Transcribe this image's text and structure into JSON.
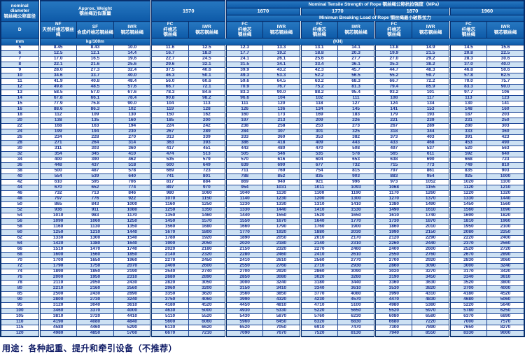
{
  "colors": {
    "header_bg": "#1263b2",
    "border_navy": "#08306e",
    "row_alt_blue": "#cde1f3",
    "data_text": "#1b3190"
  },
  "header": {
    "diameter": {
      "label": "nominal\ndiameter\n钢丝绳公称直径",
      "symbol": "D",
      "unit": "mm"
    },
    "weight": {
      "label": "Approx. Weight\n钢丝绳近似重量",
      "unit": "kg/100m",
      "columns": {
        "nf": "NF\n天然纤维芯钢丝绳",
        "sf": "SF\n合成纤维芯钢丝绳",
        "iwr": "IWR\n钢芯钢丝绳"
      }
    },
    "tensile_label": "Nominal Tensile Strength of Rope 钢丝绳公称抗拉强度（MPa）",
    "breaking_label": "Minimun Breaking Load of Rope 钢丝绳最小破断拉力",
    "breaking_unit": "(KN)",
    "grades": [
      "1570",
      "1670",
      "1770",
      "1870",
      "1960"
    ],
    "fc_label": "FC\n纤维芯\n钢丝绳",
    "iwr_label": "IWR\n钢芯钢丝绳"
  },
  "footer": {
    "text": "用途：各种起重、提升和牵引设备（不推荐）"
  },
  "chart_data": {
    "type": "table",
    "columns": [
      "D (mm)",
      "NF 天然纤维芯钢丝绳 (kg/100m)",
      "SF 合成纤维芯钢丝绳 (kg/100m)",
      "IWR 钢芯钢丝绳 (kg/100m)",
      "1570 FC 纤维芯钢丝绳 (KN)",
      "1570 IWR 钢芯钢丝绳 (KN)",
      "1670 FC 纤维芯钢丝绳 (KN)",
      "1670 IWR 钢芯钢丝绳 (KN)",
      "1770 FC 纤维芯钢丝绳 (KN)",
      "1770 IWR 钢芯钢丝绳 (KN)",
      "1870 FC 纤维芯钢丝绳 (KN)",
      "1870 IWR 钢芯钢丝绳 (KN)",
      "1960 FC 纤维芯钢丝绳 (KN)",
      "1960 IWR 钢芯钢丝绳 (KN)"
    ],
    "rows": [
      [
        "5",
        "8.45",
        "8.43",
        "10.0",
        "11.6",
        "12.5",
        "12.3",
        "13.3",
        "13.1",
        "14.1",
        "13.8",
        "14.9",
        "14.5",
        "15.6"
      ],
      [
        "6",
        "12.5",
        "12.1",
        "14.4",
        "16.7",
        "18.0",
        "17.7",
        "19.2",
        "18.8",
        "20.3",
        "19.9",
        "21.5",
        "20.8",
        "22.5"
      ],
      [
        "7",
        "17.0",
        "16.5",
        "19.6",
        "22.7",
        "24.5",
        "24.1",
        "26.1",
        "25.6",
        "27.7",
        "27.0",
        "29.2",
        "28.3",
        "30.6"
      ],
      [
        "8",
        "22.1",
        "21.6",
        "25.6",
        "29.6",
        "32.1",
        "31.5",
        "34.1",
        "33.4",
        "36.1",
        "35.3",
        "38.2",
        "37.0",
        "40.0"
      ],
      [
        "9",
        "28.0",
        "27.3",
        "32.4",
        "37.5",
        "40.6",
        "39.9",
        "43.2",
        "42.3",
        "45.7",
        "44.7",
        "48.3",
        "46.8",
        "50.6"
      ],
      [
        "10",
        "34.6",
        "33.7",
        "40.0",
        "46.3",
        "50.1",
        "49.3",
        "53.3",
        "52.2",
        "56.5",
        "55.2",
        "59.7",
        "57.8",
        "62.5"
      ],
      [
        "11",
        "41.9",
        "40.8",
        "48.4",
        "56.0",
        "60.6",
        "59.6",
        "64.5",
        "63.2",
        "68.3",
        "66.7",
        "72.2",
        "70.0",
        "75.7"
      ],
      [
        "12",
        "49.8",
        "48.5",
        "57.6",
        "66.7",
        "72.1",
        "70.9",
        "76.7",
        "75.2",
        "81.3",
        "79.4",
        "85.9",
        "83.3",
        "90.0"
      ],
      [
        "13",
        "58.5",
        "57.0",
        "67.6",
        "78.3",
        "84.6",
        "83.3",
        "90.0",
        "88.2",
        "95.4",
        "93.2",
        "101",
        "97.7",
        "106"
      ],
      [
        "14",
        "67.8",
        "66.1",
        "78.4",
        "90.8",
        "98.2",
        "96.6",
        "104",
        "102",
        "111",
        "108",
        "117",
        "113",
        "123"
      ],
      [
        "15",
        "77.9",
        "75.8",
        "90.0",
        "104",
        "113",
        "111",
        "120",
        "118",
        "127",
        "124",
        "134",
        "130",
        "141"
      ],
      [
        "16",
        "88.6",
        "86.3",
        "102",
        "119",
        "128",
        "126",
        "136",
        "134",
        "145",
        "141",
        "153",
        "148",
        "160"
      ],
      [
        "18",
        "112",
        "109",
        "130",
        "150",
        "162",
        "160",
        "173",
        "169",
        "183",
        "179",
        "193",
        "187",
        "203"
      ],
      [
        "20",
        "138",
        "135",
        "160",
        "185",
        "200",
        "197",
        "213",
        "209",
        "226",
        "221",
        "239",
        "231",
        "250"
      ],
      [
        "22",
        "168",
        "163",
        "194",
        "224",
        "242",
        "238",
        "258",
        "253",
        "273",
        "267",
        "289",
        "280",
        "303"
      ],
      [
        "24",
        "199",
        "194",
        "230",
        "267",
        "289",
        "284",
        "307",
        "301",
        "325",
        "318",
        "344",
        "333",
        "360"
      ],
      [
        "26",
        "234",
        "228",
        "270",
        "313",
        "339",
        "333",
        "360",
        "353",
        "382",
        "373",
        "403",
        "391",
        "423"
      ],
      [
        "28",
        "271",
        "264",
        "314",
        "363",
        "393",
        "386",
        "418",
        "409",
        "443",
        "433",
        "468",
        "453",
        "490"
      ],
      [
        "30",
        "311",
        "303",
        "360",
        "417",
        "451",
        "443",
        "480",
        "470",
        "508",
        "497",
        "537",
        "520",
        "563"
      ],
      [
        "32",
        "354",
        "345",
        "410",
        "474",
        "513",
        "505",
        "546",
        "535",
        "578",
        "565",
        "611",
        "592",
        "640"
      ],
      [
        "34",
        "400",
        "390",
        "462",
        "535",
        "579",
        "570",
        "616",
        "604",
        "653",
        "638",
        "690",
        "668",
        "723"
      ],
      [
        "36",
        "448",
        "437",
        "518",
        "600",
        "649",
        "639",
        "690",
        "677",
        "732",
        "715",
        "773",
        "749",
        "810"
      ],
      [
        "38",
        "500",
        "487",
        "578",
        "669",
        "723",
        "711",
        "769",
        "754",
        "815",
        "797",
        "861",
        "835",
        "903"
      ],
      [
        "40",
        "554",
        "539",
        "640",
        "741",
        "801",
        "788",
        "852",
        "835",
        "903",
        "883",
        "954",
        "925",
        "1000"
      ],
      [
        "42",
        "610",
        "595",
        "706",
        "817",
        "884",
        "869",
        "940",
        "921",
        "996",
        "973",
        "1052",
        "1020",
        "1100"
      ],
      [
        "44",
        "670",
        "652",
        "774",
        "897",
        "970",
        "954",
        "1031",
        "1011",
        "1093",
        "1068",
        "1155",
        "1120",
        "1210"
      ],
      [
        "46",
        "732",
        "713",
        "846",
        "980",
        "1060",
        "1040",
        "1130",
        "1100",
        "1190",
        "1170",
        "1260",
        "1220",
        "1320"
      ],
      [
        "48",
        "797",
        "776",
        "922",
        "1070",
        "1150",
        "1140",
        "1230",
        "1200",
        "1300",
        "1270",
        "1370",
        "1330",
        "1440"
      ],
      [
        "50",
        "865",
        "843",
        "1000",
        "1160",
        "1250",
        "1230",
        "1330",
        "1310",
        "1410",
        "1380",
        "1490",
        "1450",
        "1560"
      ],
      [
        "52",
        "936",
        "911",
        "1080",
        "1250",
        "1350",
        "1330",
        "1440",
        "1410",
        "1530",
        "1490",
        "1610",
        "1560",
        "1690"
      ],
      [
        "54",
        "1010",
        "983",
        "1170",
        "1350",
        "1460",
        "1440",
        "1550",
        "1520",
        "1650",
        "1610",
        "1740",
        "1690",
        "1820"
      ],
      [
        "56",
        "1090",
        "1060",
        "1250",
        "1450",
        "1570",
        "1550",
        "1670",
        "1640",
        "1770",
        "1730",
        "1870",
        "1810",
        "1960"
      ],
      [
        "58",
        "1160",
        "1130",
        "1350",
        "1560",
        "1680",
        "1660",
        "1790",
        "1760",
        "1900",
        "1860",
        "2010",
        "1950",
        "2100"
      ],
      [
        "60",
        "1250",
        "1210",
        "1440",
        "1670",
        "1800",
        "1770",
        "1920",
        "1880",
        "2030",
        "1990",
        "2150",
        "2080",
        "2250"
      ],
      [
        "62",
        "1330",
        "1300",
        "1540",
        "1780",
        "1920",
        "1890",
        "2050",
        "2010",
        "2170",
        "2120",
        "2290",
        "2220",
        "2400"
      ],
      [
        "64",
        "1420",
        "1380",
        "1640",
        "1900",
        "2050",
        "2020",
        "2180",
        "2140",
        "2310",
        "2260",
        "2440",
        "2370",
        "2560"
      ],
      [
        "66",
        "1510",
        "1470",
        "1740",
        "2020",
        "2180",
        "2150",
        "2320",
        "2270",
        "2460",
        "2400",
        "2600",
        "2520",
        "2720"
      ],
      [
        "68",
        "1600",
        "1560",
        "1850",
        "2140",
        "2320",
        "2280",
        "2460",
        "2410",
        "2610",
        "2550",
        "2760",
        "2670",
        "2890"
      ],
      [
        "70",
        "1700",
        "1650",
        "1960",
        "2270",
        "2450",
        "2410",
        "2610",
        "2560",
        "2770",
        "2700",
        "2920",
        "2830",
        "3060"
      ],
      [
        "72",
        "1790",
        "1750",
        "2070",
        "2400",
        "2600",
        "2550",
        "2760",
        "2710",
        "2930",
        "2860",
        "3090",
        "3000",
        "3240"
      ],
      [
        "74",
        "1890",
        "1850",
        "2190",
        "2540",
        "2740",
        "2700",
        "2920",
        "2860",
        "3090",
        "3020",
        "3270",
        "3170",
        "3420"
      ],
      [
        "76",
        "2000",
        "1950",
        "2310",
        "2680",
        "2890",
        "2850",
        "3080",
        "3020",
        "3260",
        "3190",
        "3450",
        "3340",
        "3610"
      ],
      [
        "78",
        "2110",
        "2050",
        "2430",
        "2820",
        "3050",
        "3000",
        "3240",
        "3180",
        "3440",
        "3360",
        "3630",
        "3520",
        "3800"
      ],
      [
        "80",
        "2210",
        "2160",
        "2560",
        "2960",
        "3200",
        "3150",
        "3410",
        "3340",
        "3610",
        "3530",
        "3820",
        "3700",
        "4000"
      ],
      [
        "85",
        "2500",
        "2430",
        "2890",
        "3350",
        "3620",
        "3560",
        "3850",
        "3770",
        "4080",
        "3990",
        "4310",
        "4180",
        "4520"
      ],
      [
        "90",
        "2800",
        "2730",
        "3240",
        "3750",
        "4060",
        "3990",
        "4320",
        "4230",
        "4570",
        "4470",
        "4830",
        "4680",
        "5060"
      ],
      [
        "95",
        "3120",
        "3040",
        "3610",
        "4180",
        "4520",
        "4450",
        "4810",
        "4710",
        "5100",
        "4980",
        "5380",
        "5220",
        "5640"
      ],
      [
        "100",
        "3460",
        "3370",
        "4000",
        "4630",
        "5000",
        "4930",
        "5330",
        "5220",
        "5650",
        "5520",
        "5970",
        "5780",
        "6250"
      ],
      [
        "105",
        "3810",
        "3720",
        "4410",
        "5110",
        "5520",
        "5430",
        "5870",
        "5760",
        "6230",
        "6080",
        "6580",
        "6370",
        "6890"
      ],
      [
        "110",
        "4190",
        "4080",
        "4840",
        "5600",
        "6060",
        "5960",
        "6450",
        "6320",
        "6830",
        "6680",
        "7220",
        "7000",
        "7570"
      ],
      [
        "115",
        "4580",
        "4460",
        "5290",
        "6130",
        "6620",
        "6520",
        "7050",
        "6910",
        "7470",
        "7300",
        "7890",
        "7650",
        "8270"
      ],
      [
        "120",
        "4980",
        "4850",
        "5760",
        "6670",
        "7210",
        "7090",
        "7670",
        "7520",
        "8130",
        "7940",
        "8550",
        "8330",
        "9000"
      ]
    ]
  }
}
